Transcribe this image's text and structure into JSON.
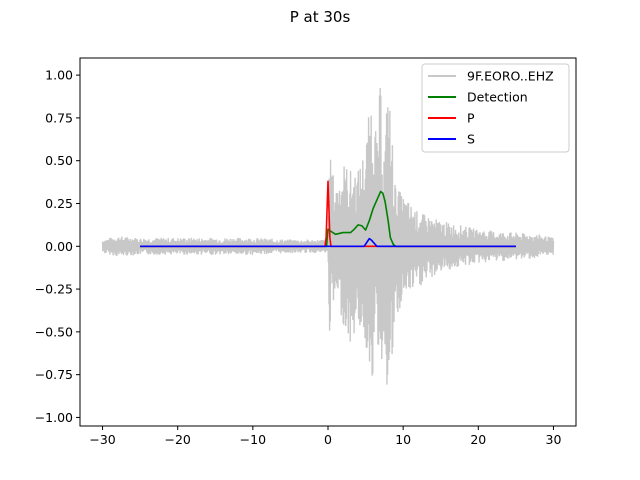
{
  "chart_data": {
    "type": "line",
    "title": "P at 30s",
    "xlabel": "",
    "ylabel": "",
    "xlim": [
      -33,
      33
    ],
    "ylim": [
      -1.05,
      1.1
    ],
    "grid": false,
    "legend_position": "top-right",
    "x_ticks": [
      -30,
      -20,
      -10,
      0,
      10,
      20,
      30
    ],
    "x_tick_labels": [
      "−30",
      "−20",
      "−10",
      "0",
      "10",
      "20",
      "30"
    ],
    "y_ticks": [
      1.0,
      0.75,
      0.5,
      0.25,
      0.0,
      -0.25,
      -0.5,
      -0.75,
      -1.0
    ],
    "y_tick_labels": [
      "1.00",
      "0.75",
      "0.50",
      "0.25",
      "0.00",
      "−0.25",
      "−0.50",
      "−0.75",
      "−1.00"
    ],
    "series": [
      {
        "name": "9F.EORO..EHZ",
        "color": "#c8c8c8",
        "envelope": {
          "x": [
            -30,
            -28,
            -25,
            -20,
            -15,
            -10,
            -5,
            -2,
            -0.5,
            0,
            0.2,
            1,
            2,
            3,
            4,
            5,
            6,
            6.5,
            7,
            7.5,
            8,
            9,
            10,
            12,
            15,
            18,
            20,
            22,
            25,
            28,
            30
          ],
          "upper": [
            0.04,
            0.06,
            0.05,
            0.05,
            0.05,
            0.05,
            0.04,
            0.04,
            0.04,
            0.05,
            0.55,
            0.35,
            0.5,
            0.45,
            0.45,
            0.6,
            1.0,
            0.6,
            1.0,
            0.55,
            1.0,
            0.35,
            0.3,
            0.2,
            0.15,
            0.12,
            0.1,
            0.09,
            0.08,
            0.07,
            0.05
          ],
          "lower": [
            -0.04,
            -0.06,
            -0.05,
            -0.05,
            -0.05,
            -0.05,
            -0.04,
            -0.04,
            -0.04,
            -0.05,
            -0.52,
            -0.3,
            -0.45,
            -0.6,
            -0.45,
            -0.6,
            -0.8,
            -0.55,
            -0.75,
            -0.55,
            -0.96,
            -0.5,
            -0.3,
            -0.25,
            -0.15,
            -0.12,
            -0.1,
            -0.09,
            -0.08,
            -0.07,
            -0.05
          ]
        }
      },
      {
        "name": "Detection",
        "color": "#008000",
        "x": [
          -25,
          -0.2,
          0,
          0.3,
          1,
          2,
          3,
          3.5,
          4,
          4.5,
          5,
          5.5,
          6,
          6.5,
          7,
          7.3,
          7.6,
          8,
          8.3,
          8.7,
          9,
          25
        ],
        "y": [
          0.0,
          0.0,
          0.1,
          0.09,
          0.07,
          0.08,
          0.08,
          0.1,
          0.125,
          0.12,
          0.095,
          0.15,
          0.22,
          0.27,
          0.32,
          0.31,
          0.26,
          0.15,
          0.05,
          0.01,
          0.0,
          0.0
        ]
      },
      {
        "name": "P",
        "color": "#ff0000",
        "x": [
          -25,
          -0.4,
          -0.25,
          -0.1,
          0,
          0.1,
          0.25,
          0.4,
          25
        ],
        "y": [
          0.0,
          0.0,
          0.05,
          0.25,
          0.38,
          0.25,
          0.05,
          0.0,
          0.0
        ]
      },
      {
        "name": "S",
        "color": "#0000ff",
        "x": [
          -25,
          4.8,
          5.2,
          5.5,
          5.8,
          6.1,
          6.5,
          25
        ],
        "y": [
          0.0,
          0.0,
          0.025,
          0.045,
          0.035,
          0.02,
          0.0,
          0.0
        ]
      }
    ]
  }
}
